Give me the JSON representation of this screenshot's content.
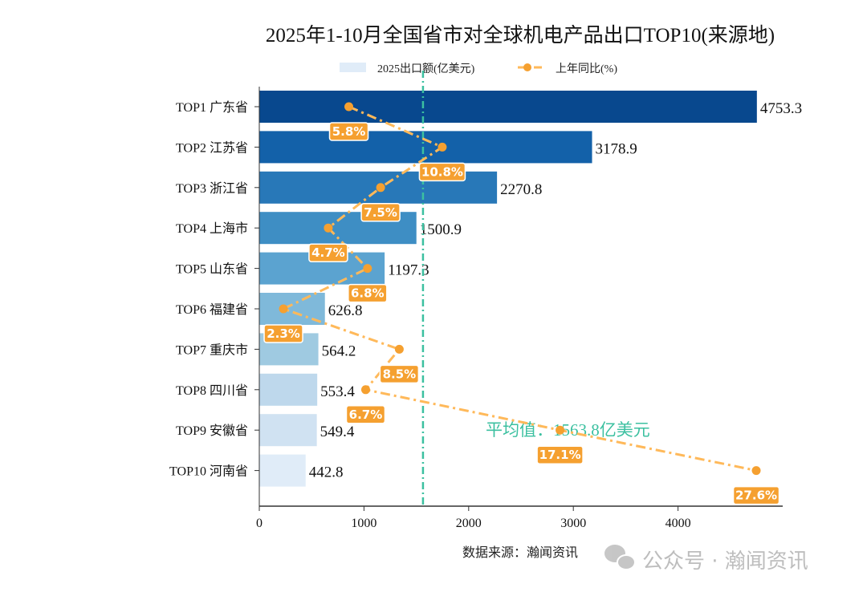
{
  "chart_data": {
    "type": "bar",
    "orientation": "horizontal",
    "title": "2025年1-10月全国省市对全球机电产品出口TOP10(来源地)",
    "categories": [
      "TOP1 广东省",
      "TOP2 江苏省",
      "TOP3 浙江省",
      "TOP4 上海市",
      "TOP5 山东省",
      "TOP6 福建省",
      "TOP7 重庆市",
      "TOP8 四川省",
      "TOP9 安徽省",
      "TOP10 河南省"
    ],
    "series": [
      {
        "name": "2025出口额(亿美元)",
        "type": "bar",
        "values": [
          4753.3,
          3178.9,
          2270.8,
          1500.9,
          1197.3,
          626.8,
          564.2,
          553.4,
          549.4,
          442.8
        ],
        "value_labels": [
          "4753.3",
          "3178.9",
          "2270.8",
          "1500.9",
          "1197.3",
          "626.8",
          "564.2",
          "553.4",
          "549.4",
          "442.8"
        ]
      },
      {
        "name": "上年同比(%)",
        "type": "line",
        "style": "dash-dot",
        "values": [
          5.8,
          10.8,
          7.5,
          4.7,
          6.8,
          2.3,
          8.5,
          6.7,
          17.1,
          27.6
        ],
        "value_labels": [
          "5.8%",
          "10.8%",
          "7.5%",
          "4.7%",
          "6.8%",
          "2.3%",
          "8.5%",
          "6.7%",
          "17.1%",
          "27.6%"
        ]
      }
    ],
    "xlim": [
      0,
      5000
    ],
    "xticks": [
      "0",
      "1000",
      "2000",
      "3000",
      "4000"
    ],
    "xtick_values": [
      0,
      1000,
      2000,
      3000,
      4000
    ],
    "mean_line": {
      "value": 1563.8,
      "label": "平均值：1563.8亿美元"
    },
    "legend_placement": "top-center",
    "grid": false,
    "source_note": "数据来源：瀚闻资讯",
    "colors": {
      "bars": [
        "#08488e",
        "#1361a9",
        "#2878b8",
        "#3e8ec4",
        "#5ba3d0",
        "#7fb9da",
        "#9fcae1",
        "#bed8ec",
        "#d0e2f2",
        "#e0ecf8"
      ],
      "line": "#ffb95a",
      "marker": "#f5a030",
      "label_box": "#f5a030",
      "mean": "#3cc0a0"
    }
  },
  "watermark": {
    "text": "公众号 · 瀚闻资讯",
    "icon": "wechat-icon"
  }
}
